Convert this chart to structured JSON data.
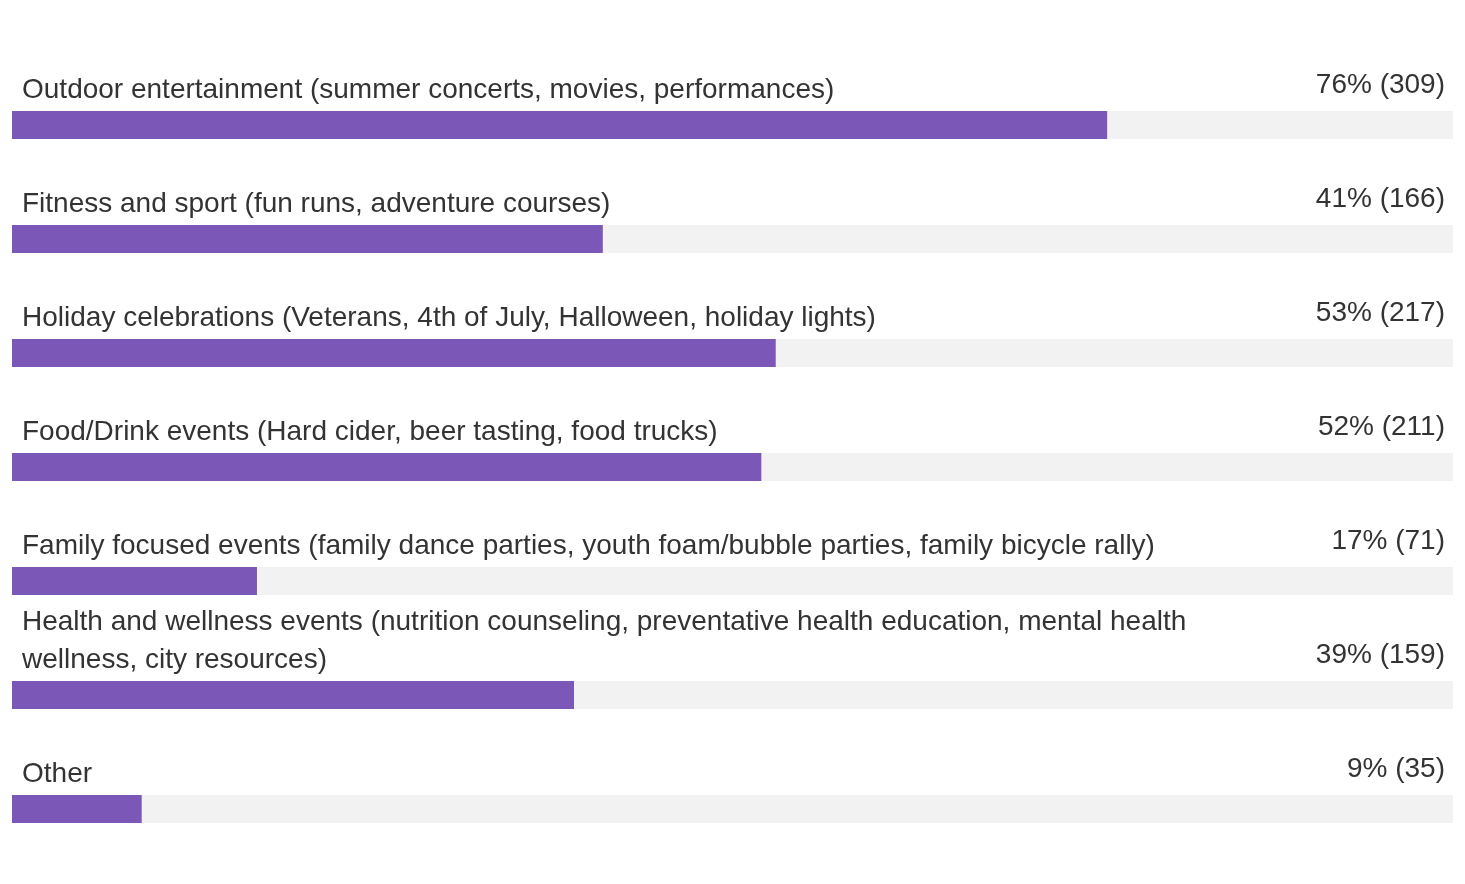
{
  "chart_data": {
    "type": "bar",
    "orientation": "horizontal",
    "categories": [
      "Outdoor entertainment (summer concerts, movies, performances)",
      "Fitness and sport (fun runs, adventure courses)",
      "Holiday celebrations (Veterans, 4th of July, Halloween, holiday lights)",
      "Food/Drink events (Hard cider, beer tasting, food trucks)",
      "Family focused events (family dance parties, youth foam/bubble parties, family bicycle rally)",
      "Health and wellness events (nutrition counseling, preventative health education, mental health wellness, city resources)",
      "Other"
    ],
    "values": [
      76,
      41,
      53,
      52,
      17,
      39,
      9
    ],
    "value_labels": [
      "76% (309)",
      "41% (166)",
      "53% (217)",
      "52% (211)",
      "17% (71)",
      "39% (159)",
      "9% (35)"
    ],
    "color": "#7b57b8",
    "xlim": [
      0,
      100
    ],
    "grid": false
  }
}
